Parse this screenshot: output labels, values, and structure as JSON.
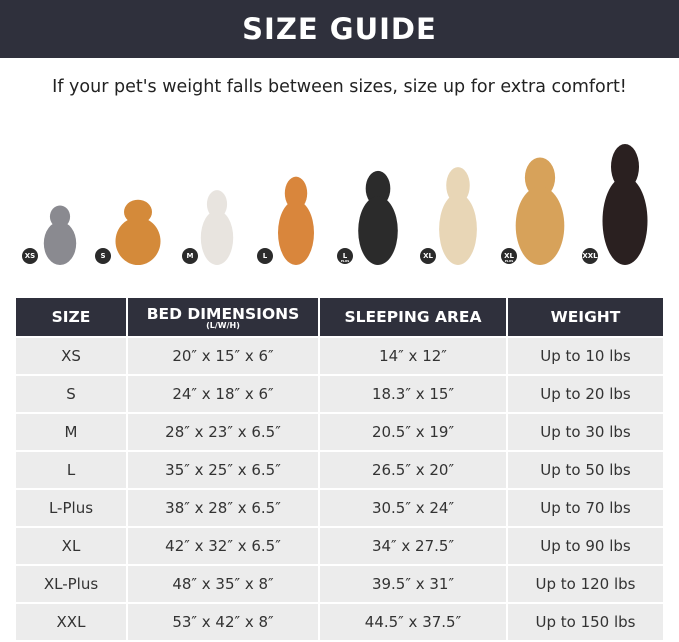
{
  "title": "SIZE GUIDE",
  "subtitle": "If your pet's weight falls between sizes, size up for extra comfort!",
  "pets": [
    {
      "badge": "XS",
      "sub": "",
      "color": "#8a8a90"
    },
    {
      "badge": "S",
      "sub": "",
      "color": "#d48a3a"
    },
    {
      "badge": "M",
      "sub": "",
      "color": "#e8e4df"
    },
    {
      "badge": "L",
      "sub": "",
      "color": "#d9863c"
    },
    {
      "badge": "L",
      "sub": "PLUS",
      "color": "#2b2b2b"
    },
    {
      "badge": "XL",
      "sub": "",
      "color": "#e8d6b6"
    },
    {
      "badge": "XL",
      "sub": "PLUS",
      "color": "#d7a25a"
    },
    {
      "badge": "XXL",
      "sub": "",
      "color": "#2a2020"
    }
  ],
  "table": {
    "headers": [
      {
        "label": "SIZE"
      },
      {
        "label": "BED DIMENSIONS",
        "unit": "(L/W/H)"
      },
      {
        "label": "SLEEPING AREA"
      },
      {
        "label": "WEIGHT"
      }
    ],
    "rows": [
      [
        "XS",
        "20″ x 15″ x 6″",
        "14″ x 12″",
        "Up to 10 lbs"
      ],
      [
        "S",
        "24″ x 18″ x 6″",
        "18.3″ x 15″",
        "Up to 20 lbs"
      ],
      [
        "M",
        "28″ x 23″ x 6.5″",
        "20.5″ x 19″",
        "Up to 30 lbs"
      ],
      [
        "L",
        "35″ x 25″ x 6.5″",
        "26.5″ x 20″",
        "Up to 50 lbs"
      ],
      [
        "L-Plus",
        "38″ x 28″ x 6.5″",
        "30.5″ x 24″",
        "Up to 70 lbs"
      ],
      [
        "XL",
        "42″ x 32″ x 6.5″",
        "34″ x 27.5″",
        "Up to 90 lbs"
      ],
      [
        "XL-Plus",
        "48″ x 35″ x 8″",
        "39.5″ x 31″",
        "Up to 120 lbs"
      ],
      [
        "XXL",
        "53″ x 42″ x 8″",
        "44.5″ x 37.5″",
        "Up to 150 lbs"
      ]
    ]
  }
}
